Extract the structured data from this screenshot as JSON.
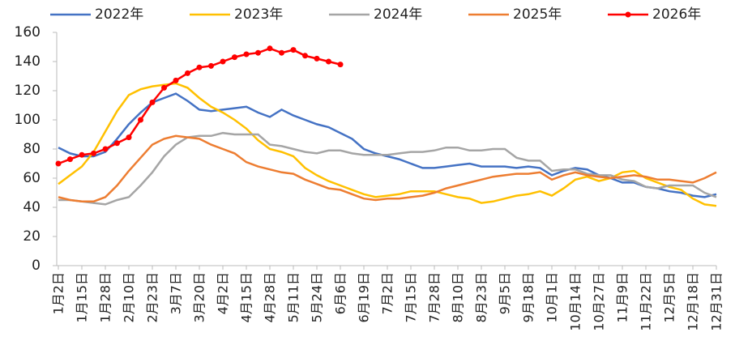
{
  "chart_data": {
    "type": "line",
    "categories": [
      "1月2日",
      null,
      "1月15日",
      null,
      "1月28日",
      null,
      "2月10日",
      null,
      "2月23日",
      null,
      "3月7日",
      null,
      "3月20日",
      null,
      "4月2日",
      null,
      "4月15日",
      null,
      "4月28日",
      null,
      "5月11日",
      null,
      "5月24日",
      null,
      "6月6日",
      null,
      "6月19日",
      null,
      "7月2日",
      null,
      "7月15日",
      null,
      "7月28日",
      null,
      "8月10日",
      null,
      "8月23日",
      null,
      "9月5日",
      null,
      "9月18日",
      null,
      "10月1日",
      null,
      "10月14日",
      null,
      "10月27日",
      null,
      "11月9日",
      null,
      "11月22日",
      null,
      "12月5日",
      null,
      "12月18日",
      null,
      "12月31日"
    ],
    "series": [
      {
        "name": "2022年",
        "color": "#4472c4",
        "values": [
          81,
          77,
          75,
          75,
          78,
          87,
          97,
          105,
          112,
          115,
          118,
          113,
          107,
          106,
          107,
          108,
          109,
          105,
          102,
          107,
          103,
          100,
          97,
          95,
          91,
          87,
          80,
          77,
          75,
          73,
          70,
          67,
          67,
          68,
          69,
          70,
          68,
          68,
          68,
          67,
          68,
          67,
          62,
          65,
          67,
          66,
          62,
          60,
          57,
          57,
          54,
          53,
          51,
          50,
          48,
          47,
          49
        ]
      },
      {
        "name": "2023年",
        "color": "#ffc000",
        "values": [
          56,
          62,
          68,
          78,
          92,
          106,
          117,
          121,
          123,
          124,
          125,
          122,
          115,
          109,
          105,
          100,
          94,
          86,
          80,
          78,
          75,
          67,
          62,
          58,
          55,
          52,
          49,
          47,
          48,
          49,
          51,
          51,
          51,
          49,
          47,
          46,
          43,
          44,
          46,
          48,
          49,
          51,
          48,
          53,
          59,
          61,
          58,
          60,
          64,
          65,
          60,
          57,
          54,
          52,
          46,
          42,
          41
        ]
      },
      {
        "name": "2024年",
        "color": "#a5a5a5",
        "values": [
          45,
          45,
          44,
          43,
          42,
          45,
          47,
          55,
          64,
          75,
          83,
          88,
          89,
          89,
          91,
          90,
          90,
          90,
          83,
          82,
          80,
          78,
          77,
          79,
          79,
          77,
          76,
          76,
          76,
          77,
          78,
          78,
          79,
          81,
          81,
          79,
          79,
          80,
          80,
          74,
          72,
          72,
          65,
          66,
          66,
          63,
          62,
          62,
          59,
          58,
          54,
          53,
          55,
          55,
          55,
          50,
          47
        ]
      },
      {
        "name": "2025年",
        "color": "#ed7d31",
        "values": [
          47,
          45,
          44,
          44,
          47,
          55,
          65,
          74,
          83,
          87,
          89,
          88,
          87,
          83,
          80,
          77,
          71,
          68,
          66,
          64,
          63,
          59,
          56,
          53,
          52,
          49,
          46,
          45,
          46,
          46,
          47,
          48,
          50,
          53,
          55,
          57,
          59,
          61,
          62,
          63,
          63,
          64,
          59,
          62,
          64,
          62,
          61,
          60,
          61,
          62,
          61,
          59,
          59,
          58,
          57,
          60,
          64
        ]
      },
      {
        "name": "2026年",
        "color": "#ff0000",
        "markers": true,
        "values": [
          70,
          73,
          76,
          77,
          80,
          84,
          88,
          100,
          112,
          122,
          127,
          132,
          136,
          137,
          140,
          143,
          145,
          146,
          149,
          146,
          148,
          144,
          142,
          140,
          138,
          null,
          null,
          null,
          null,
          null,
          null,
          null,
          null,
          null,
          null,
          null,
          null,
          null,
          null,
          null,
          null,
          null,
          null,
          null,
          null,
          null,
          null,
          null,
          null,
          null,
          null,
          null,
          null,
          null,
          null,
          null,
          null
        ]
      }
    ],
    "ylim": [
      0,
      160
    ],
    "yticks": [
      0,
      20,
      40,
      60,
      80,
      100,
      120,
      140,
      160
    ],
    "grid": false,
    "legend": "top"
  }
}
